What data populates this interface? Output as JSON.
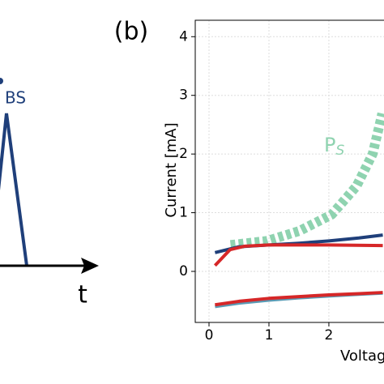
{
  "panel_a": {
    "peak_label": "BS",
    "axis_label": "t"
  },
  "chart_data": {
    "type": "line",
    "panel_label": "(b)",
    "x_label": "Voltage",
    "y_label": "Current [mA]",
    "xlim": [
      -0.23,
      2.92
    ],
    "ylim": [
      -0.87,
      4.28
    ],
    "xticks": [
      0,
      1,
      2
    ],
    "yticks": [
      0,
      1,
      2,
      3,
      4
    ],
    "grid": true,
    "annotation": {
      "text": "P",
      "subscript": "S",
      "x": 1.92,
      "y": 2.14,
      "color": "#8fd3b0"
    },
    "series": [
      {
        "color": "#8fd3b0",
        "style": "dashed",
        "x": [
          0.36,
          0.97,
          1.51,
          2.05,
          2.46,
          2.73,
          2.89
        ],
        "values": [
          0.45,
          0.52,
          0.69,
          0.97,
          1.45,
          2.0,
          2.69
        ]
      },
      {
        "color": "#1f3f7a",
        "style": "solid",
        "x": [
          0.1,
          0.5,
          1.0,
          1.5,
          2.0,
          2.5,
          2.9
        ],
        "values": [
          0.32,
          0.42,
          0.45,
          0.48,
          0.52,
          0.57,
          0.62
        ]
      },
      {
        "color": "#d62728",
        "style": "solid",
        "x": [
          0.1,
          0.35,
          0.6,
          1.0,
          2.0,
          2.9
        ],
        "values": [
          0.1,
          0.37,
          0.43,
          0.45,
          0.45,
          0.44
        ]
      },
      {
        "color": "#5a9bb5",
        "style": "solid",
        "x": [
          0.1,
          0.5,
          1.0,
          1.5,
          2.0,
          2.5,
          2.9
        ],
        "values": [
          -0.6,
          -0.54,
          -0.49,
          -0.45,
          -0.42,
          -0.39,
          -0.37
        ]
      },
      {
        "color": "#d62728",
        "style": "solid",
        "x": [
          0.1,
          0.5,
          1.0,
          1.5,
          2.0,
          2.5,
          2.9
        ],
        "values": [
          -0.57,
          -0.51,
          -0.46,
          -0.43,
          -0.4,
          -0.38,
          -0.36
        ]
      }
    ]
  }
}
